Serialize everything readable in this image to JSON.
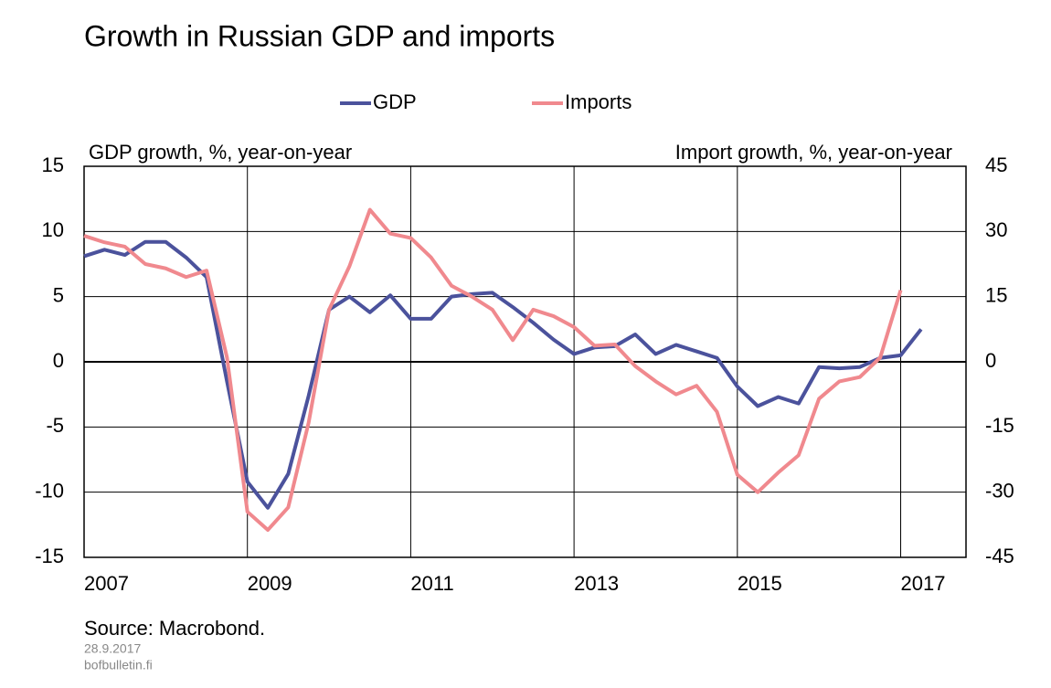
{
  "chart_data": {
    "type": "line",
    "title": "Growth in Russian GDP and imports",
    "y_label": "GDP growth, %, year-on-year",
    "y2_label": "Import growth, %, year-on-year",
    "source": "Source: Macrobond.",
    "date": "28.9.2017",
    "site": "bofbulletin.fi",
    "x": [
      2007,
      2007.25,
      2007.5,
      2007.75,
      2008,
      2008.25,
      2008.5,
      2008.75,
      2009,
      2009.25,
      2009.5,
      2009.75,
      2010,
      2010.25,
      2010.5,
      2010.75,
      2011,
      2011.25,
      2011.5,
      2011.75,
      2012,
      2012.25,
      2012.5,
      2012.75,
      2013,
      2013.25,
      2013.5,
      2013.75,
      2014,
      2014.25,
      2014.5,
      2014.75,
      2015,
      2015.25,
      2015.5,
      2015.75,
      2016,
      2016.25,
      2016.5,
      2016.75,
      2017,
      2017.25
    ],
    "xlim": [
      2007,
      2017.8
    ],
    "xticks": [
      2007,
      2009,
      2011,
      2013,
      2015,
      2017
    ],
    "ylim": [
      -15,
      15
    ],
    "yticks": [
      -15,
      -10,
      -5,
      0,
      5,
      10,
      15
    ],
    "y2lim": [
      -45,
      45
    ],
    "y2ticks": [
      -45,
      -30,
      -15,
      0,
      15,
      30,
      45
    ],
    "grid": true,
    "legend": "top",
    "series": [
      {
        "name": "GDP",
        "color": "#4b529c",
        "values": [
          8.1,
          8.6,
          8.2,
          9.2,
          9.2,
          8.0,
          6.5,
          -1.5,
          -9.2,
          -11.2,
          -8.6,
          -2.6,
          4.0,
          5.0,
          3.8,
          5.1,
          3.3,
          3.3,
          5.0,
          5.2,
          5.3,
          4.2,
          3.0,
          1.7,
          0.6,
          1.1,
          1.2,
          2.1,
          0.6,
          1.3,
          0.8,
          0.3,
          -1.9,
          -3.4,
          -2.7,
          -3.2,
          -0.4,
          -0.5,
          -0.4,
          0.3,
          0.5,
          2.5
        ]
      },
      {
        "name": "Imports",
        "color": "#f0898e",
        "axis": "y2",
        "values": [
          29,
          27.5,
          26.5,
          22.5,
          21.5,
          19.5,
          21,
          1,
          -34.5,
          -38.7,
          -33.5,
          -14,
          12,
          22,
          35,
          29.5,
          28.5,
          24,
          17.5,
          15,
          12,
          5,
          12,
          10.5,
          8,
          3.7,
          4,
          -1,
          -4.5,
          -7.5,
          -5.5,
          -11.5,
          -26,
          -30,
          -25.5,
          -21.5,
          -8.5,
          -4.5,
          -3.5,
          1,
          16.5,
          null
        ]
      }
    ]
  }
}
